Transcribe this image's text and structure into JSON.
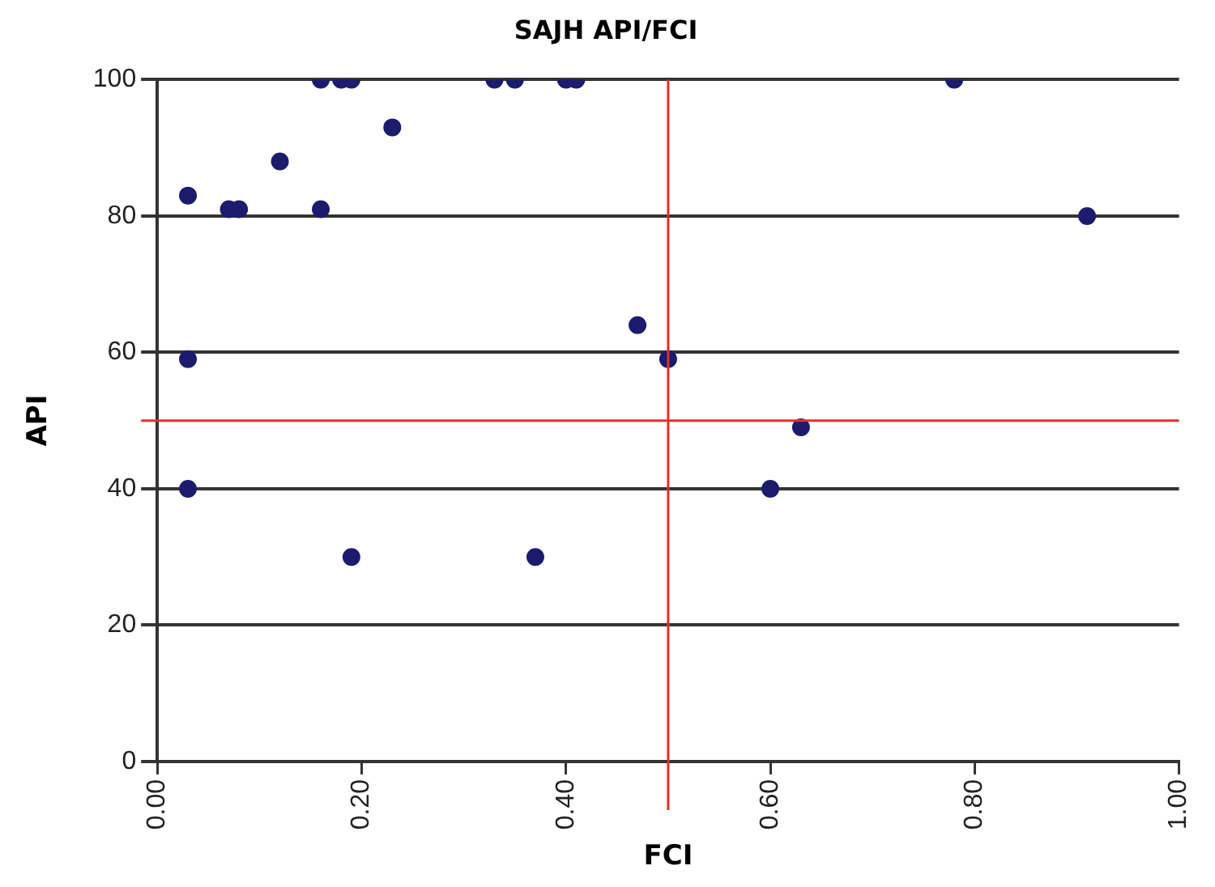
{
  "chart_data": {
    "type": "scatter",
    "title": "SAJH API/FCI",
    "xlabel": "FCI",
    "ylabel": "API",
    "x": [
      0.16,
      0.18,
      0.19,
      0.33,
      0.35,
      0.4,
      0.41,
      0.78,
      0.23,
      0.12,
      0.03,
      0.07,
      0.08,
      0.16,
      0.91,
      0.47,
      0.5,
      0.03,
      0.63,
      0.03,
      0.6,
      0.19,
      0.37
    ],
    "series": [
      {
        "color": "#1c1c6e",
        "values": [
          100,
          100,
          100,
          100,
          100,
          100,
          100,
          100,
          93,
          88,
          83,
          81,
          81,
          81,
          80,
          64,
          59,
          59,
          49,
          40,
          40,
          30,
          30
        ]
      }
    ],
    "xlim": [
      0,
      1
    ],
    "xticks": [
      {
        "value": 0,
        "label": "0.00"
      },
      {
        "value": 0.2,
        "label": "0.20"
      },
      {
        "value": 0.4,
        "label": "0.40"
      },
      {
        "value": 0.6,
        "label": "0.60"
      },
      {
        "value": 0.8,
        "label": "0.80"
      },
      {
        "value": 1,
        "label": "1.00"
      }
    ],
    "ylim": [
      0,
      100
    ],
    "yticks": [
      0,
      20,
      40,
      60,
      80,
      100
    ],
    "grid": "y",
    "legend": false,
    "marker": "circle",
    "ref_lines": [
      {
        "axis": "x",
        "value": 0.5,
        "color": "#e03030"
      },
      {
        "axis": "y",
        "value": 50,
        "color": "#e03030"
      }
    ]
  }
}
